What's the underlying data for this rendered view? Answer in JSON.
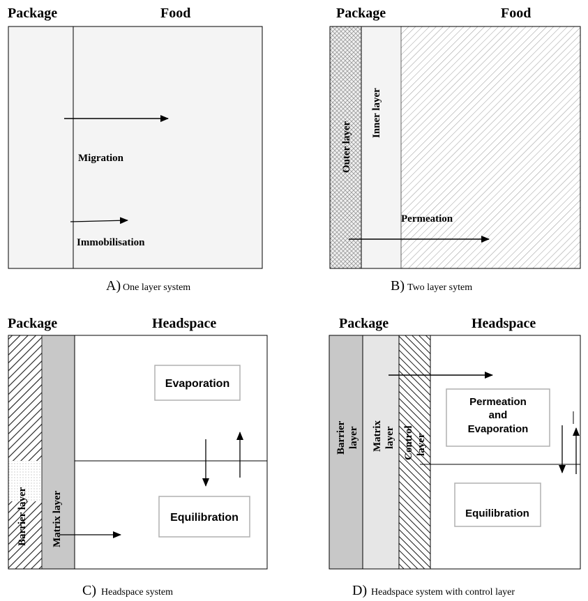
{
  "panel_a": {
    "header_left": "Package",
    "header_right": "Food",
    "migration": "Migration",
    "immobilisation": "Immobilisation",
    "caption_letter": "A)",
    "caption_text": "One layer system"
  },
  "panel_b": {
    "header_left": "Package",
    "header_right": "Food",
    "outer_layer": "Outer layer",
    "inner_layer": "Inner layer",
    "permeation": "Permeation",
    "caption_letter": "B)",
    "caption_text": "Two layer sytem"
  },
  "panel_c": {
    "header_left": "Package",
    "header_right": "Headspace",
    "barrier_layer": "Barrier layer",
    "matrix_layer": "Matrix layer",
    "evaporation": "Evaporation",
    "equilibration": "Equilibration",
    "caption_letter": "C)",
    "caption_text": "Headspace system"
  },
  "panel_d": {
    "header_left": "Package",
    "header_right": "Headspace",
    "barrier_1": "Barrier",
    "barrier_2": "layer",
    "matrix_1": "Matrix",
    "matrix_2": "layer",
    "control_1": "Control",
    "control_2": "layer",
    "perm_evap_1": "Permeation",
    "perm_evap_2": "and",
    "perm_evap_3": "Evaporation",
    "equilibration": "Equilibration",
    "caption_letter": "D)",
    "caption_text": "Headspace system with control layer"
  },
  "colors": {
    "panel_fill": "#f4f4f4",
    "matrix_grey": "#c8c8c8",
    "light_grey": "#e6e6e6",
    "line": "#000000"
  }
}
